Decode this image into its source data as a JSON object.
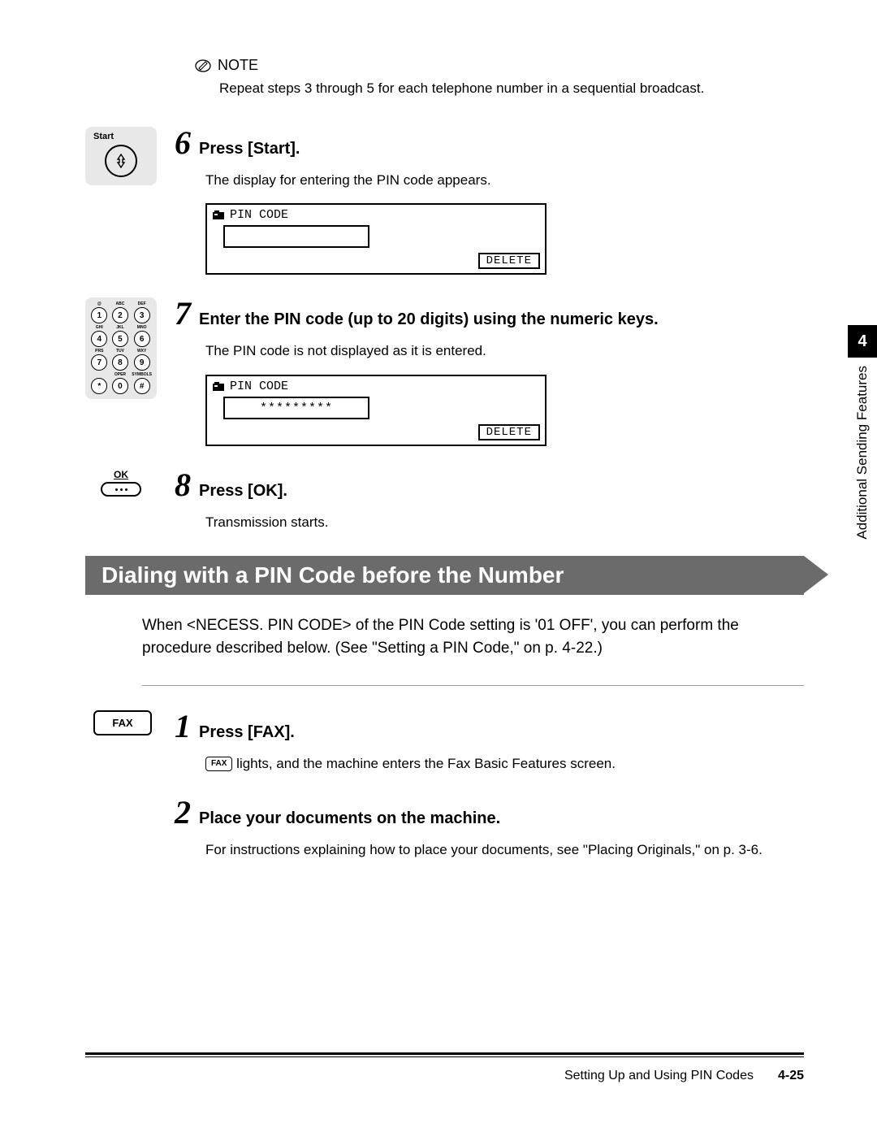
{
  "note": {
    "label": "NOTE",
    "text": "Repeat steps 3 through 5 for each telephone number in a sequential broadcast."
  },
  "steps": {
    "s6": {
      "num": "6",
      "title": "Press [Start].",
      "desc": "The display for entering the PIN code appears.",
      "start_label": "Start"
    },
    "s7": {
      "num": "7",
      "title": "Enter the PIN code (up to 20 digits) using the numeric keys.",
      "desc": "The PIN code is not displayed as it is entered."
    },
    "s8": {
      "num": "8",
      "title": "Press [OK].",
      "desc": "Transmission starts.",
      "ok_label": "OK"
    },
    "s1b": {
      "num": "1",
      "title": "Press [FAX].",
      "fax_label": "FAX",
      "desc_suffix": " lights, and the machine enters the Fax Basic Features screen."
    },
    "s2b": {
      "num": "2",
      "title": "Place your documents on the machine.",
      "desc": "For instructions explaining how to place your documents, see \"Placing Originals,\" on p. 3-6."
    }
  },
  "lcd": {
    "title": "PIN CODE",
    "masked": "*********",
    "delete": "DELETE"
  },
  "keypad": {
    "labels": [
      "@",
      "ABC",
      "DEF",
      "GHI",
      "JKL",
      "MNO",
      "PRS",
      "TUV",
      "WXY",
      "",
      "OPER",
      "SYMBOLS"
    ],
    "keys": [
      "1",
      "2",
      "3",
      "4",
      "5",
      "6",
      "7",
      "8",
      "9",
      "*",
      "0",
      "#"
    ]
  },
  "section": {
    "title": "Dialing with a PIN Code before the Number",
    "para": "When <NECESS. PIN CODE> of the PIN Code setting is '01 OFF', you can perform the procedure described below. (See \"Setting a PIN Code,\" on p. 4-22.)"
  },
  "side": {
    "chapter": "4",
    "label": "Additional Sending Features"
  },
  "footer": {
    "section": "Setting Up and Using PIN Codes",
    "page": "4-25"
  },
  "colors": {
    "bar": "#6b6b6b",
    "icon_bg": "#e8e8e8"
  }
}
